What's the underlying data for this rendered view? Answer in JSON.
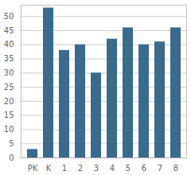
{
  "chart_data": {
    "type": "bar",
    "categories": [
      "PK",
      "K",
      "1",
      "2",
      "3",
      "4",
      "5",
      "6",
      "7",
      "8"
    ],
    "values": [
      3,
      53,
      38,
      40,
      30,
      42,
      46,
      40,
      41,
      46
    ],
    "color": "#3a6a8c",
    "ylim": [
      0,
      54
    ],
    "yticks": [
      0,
      5,
      10,
      15,
      20,
      25,
      30,
      35,
      40,
      45,
      50
    ],
    "grid": true
  }
}
